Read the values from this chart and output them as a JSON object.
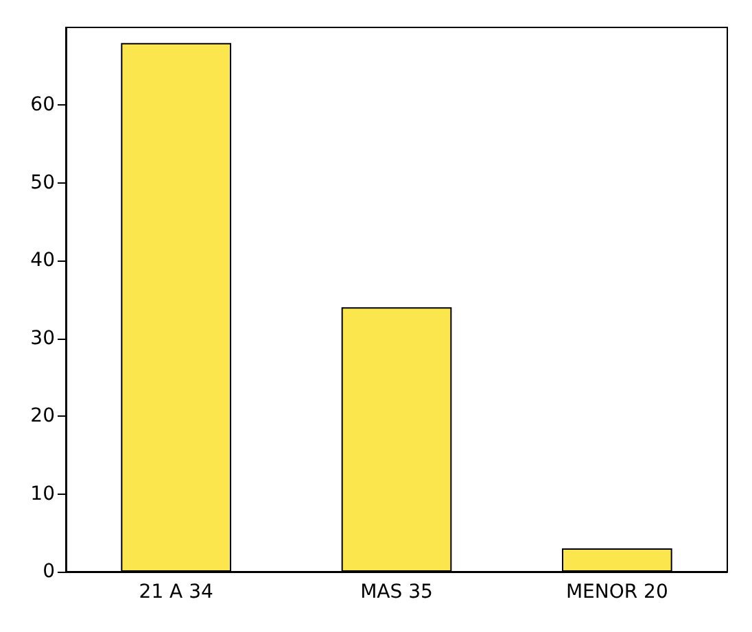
{
  "chart_data": {
    "type": "bar",
    "categories": [
      "21 A 34",
      "MAS 35",
      "MENOR 20"
    ],
    "values": [
      68,
      34,
      3
    ],
    "color": "#fbe64e",
    "ylim": [
      0,
      70
    ],
    "yticks": [
      0,
      10,
      20,
      30,
      40,
      50,
      60
    ],
    "grid": false
  }
}
